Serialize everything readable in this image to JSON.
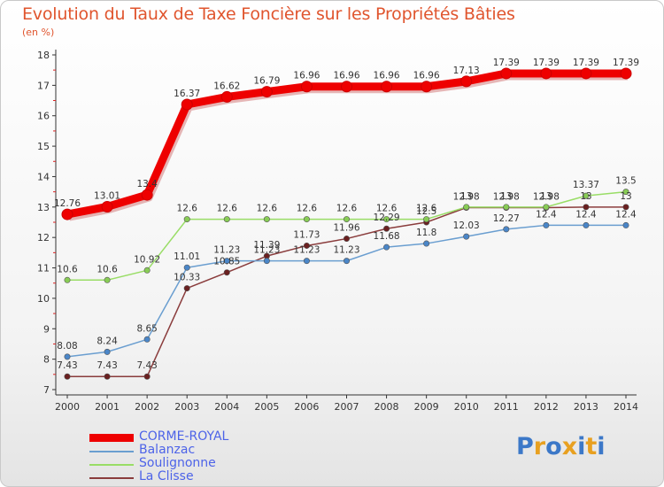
{
  "title": "Evolution du Taux de Taxe Foncière sur les Propriétés Bâties",
  "subtitle": "(en %)",
  "brand": {
    "letters": [
      "P",
      "r",
      "o",
      "x",
      "i",
      "t",
      "i"
    ],
    "colors": [
      "#3c78c8",
      "#e8a020",
      "#3c78c8",
      "#e8a020",
      "#3c78c8",
      "#e8a020",
      "#3c78c8"
    ]
  },
  "chart_data": {
    "type": "line",
    "title": "Evolution du Taux de Taxe Foncière sur les Propriétés Bâties",
    "ylabel": "(en %)",
    "xlabel": "",
    "ylim": [
      7,
      18
    ],
    "yticks": [
      "7",
      "8",
      "9",
      "10",
      "11",
      "12",
      "13",
      "14",
      "15",
      "16",
      "17",
      "18"
    ],
    "x": [
      "2000",
      "2001",
      "2002",
      "2003",
      "2004",
      "2005",
      "2006",
      "2007",
      "2008",
      "2009",
      "2010",
      "2011",
      "2012",
      "2013",
      "2014"
    ],
    "series": [
      {
        "name": "CORME-ROYAL",
        "color": "#ee0000",
        "marker": "#ee0000",
        "values": [
          12.76,
          13.01,
          13.4,
          16.37,
          16.62,
          16.79,
          16.96,
          16.96,
          16.96,
          16.96,
          17.13,
          17.39,
          17.39,
          17.39,
          17.39
        ],
        "labels": [
          "12.76",
          "13.01",
          "13.4",
          "16.37",
          "16.62",
          "16.79",
          "16.96",
          "16.96",
          "16.96",
          "16.96",
          "17.13",
          "17.39",
          "17.39",
          "17.39",
          "17.39"
        ]
      },
      {
        "name": "Balanzac",
        "color": "#6a9ed0",
        "marker": "#4a86c8",
        "values": [
          8.08,
          8.24,
          8.65,
          11.01,
          11.23,
          11.23,
          11.23,
          11.23,
          11.68,
          11.8,
          12.03,
          12.27,
          12.4,
          12.4,
          12.4
        ],
        "labels": [
          "8.08",
          "8.24",
          "8.65",
          "11.01",
          "11.23",
          "11.23",
          "11.23",
          "11.23",
          "11.68",
          "11.8",
          "12.03",
          "12.27",
          "12.4",
          "12.4",
          "12.4"
        ]
      },
      {
        "name": "Soulignonne",
        "color": "#99dd66",
        "marker": "#88cc55",
        "values": [
          10.6,
          10.6,
          10.92,
          12.6,
          12.6,
          12.6,
          12.6,
          12.6,
          12.6,
          12.6,
          13,
          13,
          13,
          13.37,
          13.5
        ],
        "labels": [
          "10.6",
          "10.6",
          "10.92",
          "12.6",
          "12.6",
          "12.6",
          "12.6",
          "12.6",
          "12.6",
          "12.6",
          "13",
          "13",
          "13",
          "13.37",
          "13.5"
        ]
      },
      {
        "name": "La Clisse",
        "color": "#8a3c3c",
        "marker": "#6a2020",
        "values": [
          7.43,
          7.43,
          7.43,
          10.33,
          10.85,
          11.39,
          11.73,
          11.96,
          12.29,
          12.5,
          12.98,
          12.98,
          12.98,
          13,
          13
        ],
        "labels": [
          "7.43",
          "7.43",
          "7.43",
          "10.33",
          "10.85",
          "11.39",
          "11.73",
          "11.96",
          "12.29",
          "12.5",
          "12.98",
          "12.98",
          "12.98",
          "13",
          "13"
        ]
      }
    ],
    "legend_position": "bottom-left",
    "grid": false
  }
}
